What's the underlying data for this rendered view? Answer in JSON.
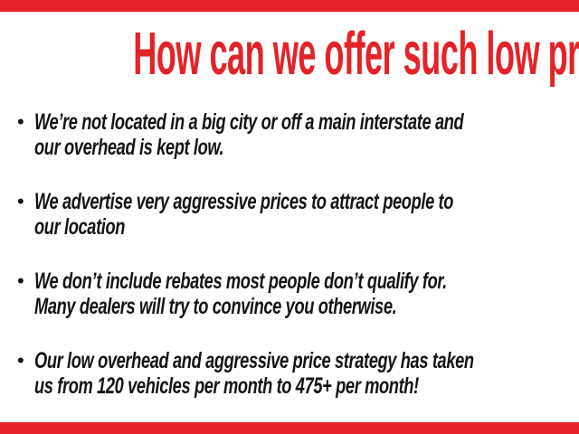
{
  "page": {
    "title": "How can we offer such low prices?",
    "accent_color": "#e42328",
    "text_color": "#141414",
    "bullet_glyph": "•"
  },
  "bullets": [
    {
      "lines": [
        "We’re not located in a big city or off a main interstate and",
        "our overhead is kept low."
      ]
    },
    {
      "lines": [
        "We advertise very aggressive prices to attract people to",
        "our location"
      ]
    },
    {
      "lines": [
        "We don’t include rebates most people don’t qualify for.",
        "Many dealers will try to convince you otherwise."
      ]
    },
    {
      "lines": [
        "Our low overhead and aggressive price strategy has taken",
        "us from 120 vehicles per month to 475+ per month!"
      ]
    }
  ]
}
